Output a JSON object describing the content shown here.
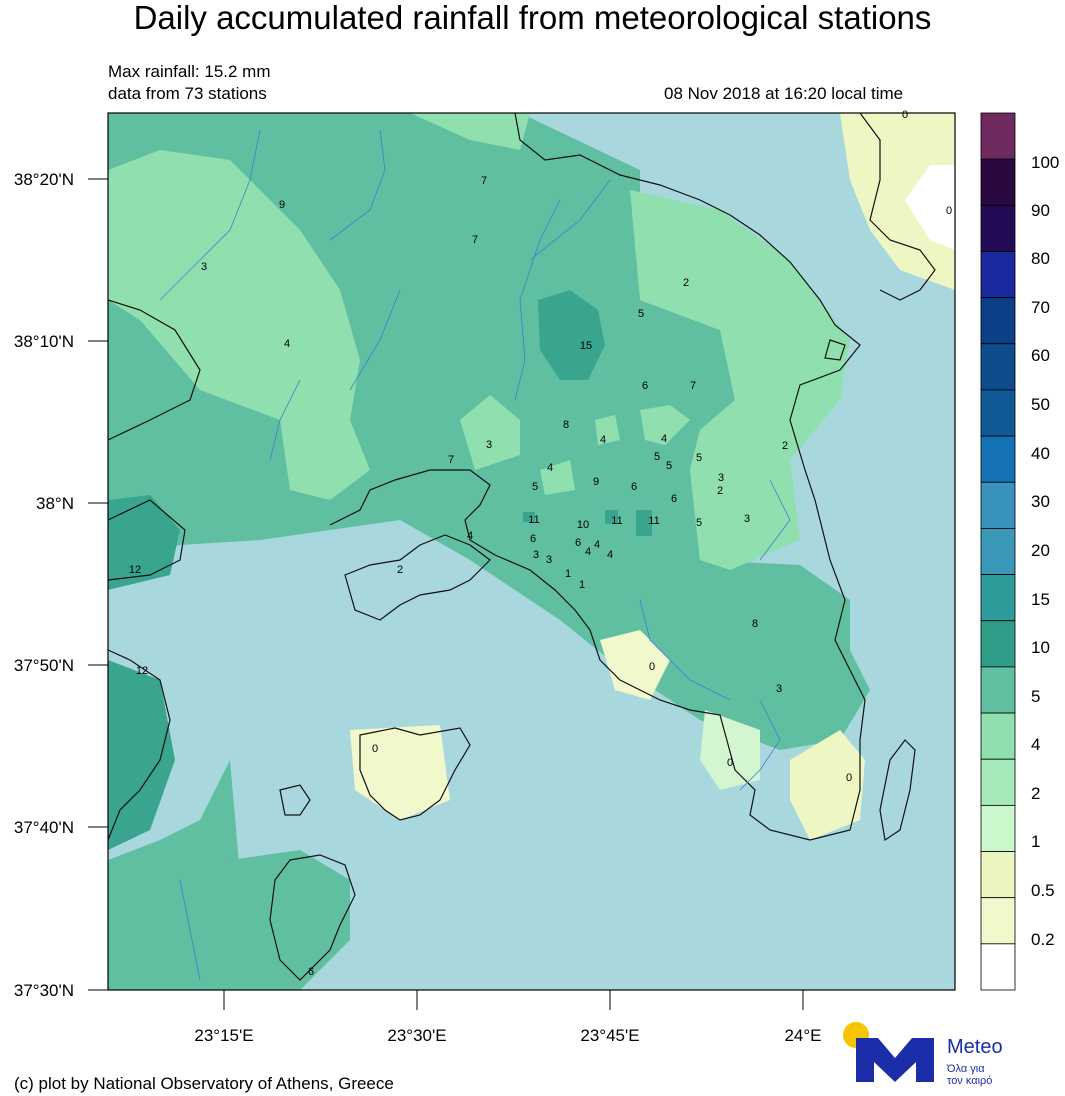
{
  "title": "Daily accumulated rainfall from meteorological stations",
  "info": {
    "max_rainfall": "Max rainfall: 15.2 mm",
    "station_count": "data from 73 stations",
    "timestamp": "08 Nov 2018 at 16:20 local time"
  },
  "lat_labels": [
    "38°20'N",
    "38°10'N",
    "38°N",
    "37°50'N",
    "37°40'N",
    "37°30'N"
  ],
  "lon_labels": [
    "23°15'E",
    "23°30'E",
    "23°45'E",
    "24°E"
  ],
  "colorbar": {
    "labels": [
      "100",
      "90",
      "80",
      "70",
      "60",
      "50",
      "40",
      "30",
      "20",
      "15",
      "10",
      "5",
      "4",
      "2",
      "1",
      "0.5",
      "0.2"
    ],
    "colors": [
      "#6e2a5e",
      "#2a0840",
      "#250a55",
      "#1a2a9e",
      "#0d3f86",
      "#0e4d8c",
      "#105a97",
      "#1573b5",
      "#3a93bc",
      "#3c98b8",
      "#2f9c9c",
      "#2e9e88",
      "#5fbfa0",
      "#8fe0ae",
      "#a5eab8",
      "#caf8cc",
      "#eaf5c0",
      "#f0f8cc",
      "#ffffff"
    ]
  },
  "station_values": [
    "7",
    "9",
    "7",
    "3",
    "4",
    "2",
    "5",
    "15",
    "6",
    "7",
    "8",
    "4",
    "4",
    "3",
    "7",
    "4",
    "5",
    "5",
    "5",
    "2",
    "5",
    "9",
    "6",
    "6",
    "2",
    "3",
    "3",
    "11",
    "10",
    "11",
    "11",
    "5",
    "4",
    "6",
    "6",
    "4",
    "4",
    "4",
    "3",
    "3",
    "1",
    "1",
    "2",
    "12",
    "0",
    "8",
    "3",
    "12",
    "0",
    "0",
    "0",
    "6",
    "0",
    "0"
  ],
  "footer": "(c) plot by National Observatory of Athens, Greece",
  "logo": {
    "word": "Meteo",
    "tagline_1": "Όλα για",
    "tagline_2": "τον καιρό"
  }
}
